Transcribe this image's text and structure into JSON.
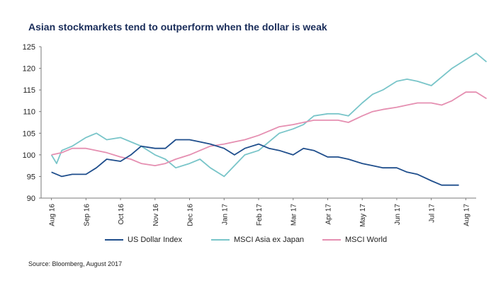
{
  "title": "Asian stockmarkets tend to outperform when the dollar is weak",
  "source": "Source: Bloomberg, August 2017",
  "colors": {
    "us_dollar": "#1f4e8c",
    "msci_asia": "#79c5c9",
    "msci_world": "#e58fb1",
    "axis": "#7a7a7a"
  },
  "chart_data": {
    "type": "line",
    "title": "Asian stockmarkets tend to outperform when the dollar is weak",
    "xlabel": "",
    "ylabel": "",
    "ylim": [
      90,
      125
    ],
    "yticks": [
      "90",
      "95",
      "100",
      "105",
      "110",
      "115",
      "120",
      "125"
    ],
    "xticks": [
      "Aug 16",
      "Sep 16",
      "Oct 16",
      "Nov 16",
      "Dec 16",
      "Jan 17",
      "Feb 17",
      "Mar 17",
      "Apr 17",
      "May 17",
      "Jun 17",
      "Jul 17",
      "Aug 17"
    ],
    "grid": false,
    "legend_position": "bottom",
    "series": [
      {
        "name": "US Dollar Index",
        "color": "#1f4e8c",
        "x": [
          0,
          0.3,
          0.6,
          1.0,
          1.3,
          1.6,
          2.0,
          2.3,
          2.6,
          3.0,
          3.3,
          3.6,
          4.0,
          4.3,
          4.6,
          5.0,
          5.3,
          5.6,
          6.0,
          6.3,
          6.6,
          7.0,
          7.3,
          7.6,
          8.0,
          8.3,
          8.6,
          9.0,
          9.3,
          9.6,
          10.0,
          10.3,
          10.6,
          11.0,
          11.3,
          11.6,
          11.8
        ],
        "values": [
          96,
          95,
          95.5,
          95.5,
          97,
          99,
          98.5,
          100,
          102,
          101.5,
          101.5,
          103.5,
          103.5,
          103,
          102.5,
          101.5,
          100,
          101.5,
          102.5,
          101.5,
          101,
          100,
          101.5,
          101,
          99.5,
          99.5,
          99,
          98,
          97.5,
          97,
          97,
          96,
          95.5,
          94,
          93,
          93,
          93
        ]
      },
      {
        "name": "MSCI Asia ex Japan",
        "color": "#79c5c9",
        "x": [
          0,
          0.15,
          0.3,
          0.6,
          1.0,
          1.3,
          1.6,
          2.0,
          2.3,
          2.6,
          3.0,
          3.3,
          3.6,
          4.0,
          4.3,
          4.6,
          5.0,
          5.3,
          5.6,
          6.0,
          6.3,
          6.6,
          7.0,
          7.3,
          7.6,
          8.0,
          8.3,
          8.6,
          9.0,
          9.3,
          9.6,
          10.0,
          10.3,
          10.6,
          11.0,
          11.3,
          11.6,
          11.8,
          12.0,
          12.3,
          12.6
        ],
        "values": [
          100,
          98,
          101,
          102,
          104,
          105,
          103.5,
          104,
          103,
          102,
          100,
          99,
          97,
          98,
          99,
          97,
          95,
          97.5,
          100,
          101,
          103,
          105,
          106,
          107,
          109,
          109.5,
          109.5,
          109,
          112,
          114,
          115,
          117,
          117.5,
          117,
          116,
          118,
          120,
          121,
          122,
          123.5,
          121.5
        ]
      },
      {
        "name": "MSCI World",
        "color": "#e58fb1",
        "x": [
          0,
          0.3,
          0.6,
          1.0,
          1.3,
          1.6,
          2.0,
          2.3,
          2.6,
          3.0,
          3.3,
          3.6,
          4.0,
          4.3,
          4.6,
          5.0,
          5.3,
          5.6,
          6.0,
          6.3,
          6.6,
          7.0,
          7.3,
          7.6,
          8.0,
          8.3,
          8.6,
          9.0,
          9.3,
          9.6,
          10.0,
          10.3,
          10.6,
          11.0,
          11.3,
          11.6,
          11.8,
          12.0,
          12.3,
          12.6
        ],
        "values": [
          100,
          100.5,
          101.5,
          101.5,
          101,
          100.5,
          99.5,
          99,
          98,
          97.5,
          98,
          99,
          100,
          101,
          102,
          102.5,
          103,
          103.5,
          104.5,
          105.5,
          106.5,
          107,
          107.5,
          108,
          108,
          108,
          107.5,
          109,
          110,
          110.5,
          111,
          111.5,
          112,
          112,
          111.5,
          112.5,
          113.5,
          114.5,
          114.5,
          113
        ]
      }
    ]
  }
}
